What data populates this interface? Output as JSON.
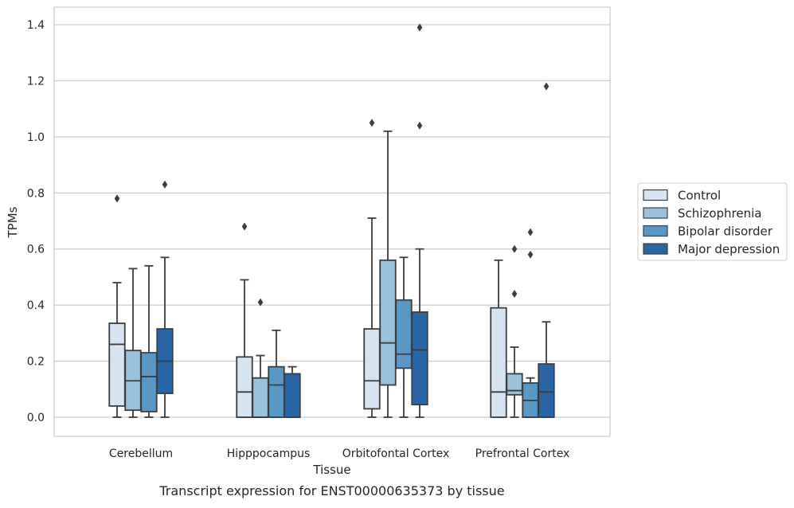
{
  "caption": "Transcript expression for ENST00000635373 by tissue",
  "chart_data": {
    "type": "box",
    "xlabel": "Tissue",
    "ylabel": "TPMs",
    "ylim": [
      -0.066,
      1.46
    ],
    "yticks": [
      "0.0",
      "0.2",
      "0.4",
      "0.6",
      "0.8",
      "1.0",
      "1.2",
      "1.4"
    ],
    "grid": "horizontal",
    "legend_position": "outside-right",
    "categories": [
      "Cerebellum",
      "Hipppocampus",
      "Orbitofontal Cortex",
      "Prefrontal Cortex"
    ],
    "series": [
      {
        "name": "Control",
        "color": "#d6e3f1",
        "boxes": [
          {
            "whislo": 0.0,
            "q1": 0.04,
            "med": 0.26,
            "q3": 0.335,
            "whishi": 0.48,
            "fliers": [
              0.78
            ]
          },
          {
            "whislo": 0.0,
            "q1": 0.0,
            "med": 0.09,
            "q3": 0.215,
            "whishi": 0.49,
            "fliers": [
              0.68
            ]
          },
          {
            "whislo": 0.0,
            "q1": 0.03,
            "med": 0.13,
            "q3": 0.315,
            "whishi": 0.71,
            "fliers": [
              1.05
            ]
          },
          {
            "whislo": 0.0,
            "q1": 0.0,
            "med": 0.09,
            "q3": 0.39,
            "whishi": 0.56,
            "fliers": []
          }
        ]
      },
      {
        "name": "Schizophrenia",
        "color": "#99c2dc",
        "boxes": [
          {
            "whislo": 0.0,
            "q1": 0.025,
            "med": 0.13,
            "q3": 0.238,
            "whishi": 0.53,
            "fliers": []
          },
          {
            "whislo": 0.0,
            "q1": 0.0,
            "med": 0.0,
            "q3": 0.14,
            "whishi": 0.22,
            "fliers": [
              0.41
            ]
          },
          {
            "whislo": 0.0,
            "q1": 0.115,
            "med": 0.265,
            "q3": 0.56,
            "whishi": 1.02,
            "fliers": []
          },
          {
            "whislo": 0.0,
            "q1": 0.08,
            "med": 0.095,
            "q3": 0.155,
            "whishi": 0.25,
            "fliers": [
              0.44,
              0.6
            ]
          }
        ]
      },
      {
        "name": "Bipolar disorder",
        "color": "#5898c7",
        "boxes": [
          {
            "whislo": 0.0,
            "q1": 0.02,
            "med": 0.145,
            "q3": 0.23,
            "whishi": 0.54,
            "fliers": []
          },
          {
            "whislo": 0.0,
            "q1": 0.0,
            "med": 0.115,
            "q3": 0.18,
            "whishi": 0.31,
            "fliers": []
          },
          {
            "whislo": 0.0,
            "q1": 0.175,
            "med": 0.225,
            "q3": 0.418,
            "whishi": 0.57,
            "fliers": []
          },
          {
            "whislo": 0.0,
            "q1": 0.0,
            "med": 0.06,
            "q3": 0.122,
            "whishi": 0.14,
            "fliers": [
              0.58,
              0.66
            ]
          }
        ]
      },
      {
        "name": "Major depression",
        "color": "#2a66a6",
        "boxes": [
          {
            "whislo": 0.0,
            "q1": 0.085,
            "med": 0.2,
            "q3": 0.315,
            "whishi": 0.57,
            "fliers": [
              0.83
            ]
          },
          {
            "whislo": 0.0,
            "q1": 0.0,
            "med": 0.0,
            "q3": 0.155,
            "whishi": 0.18,
            "fliers": []
          },
          {
            "whislo": 0.0,
            "q1": 0.045,
            "med": 0.24,
            "q3": 0.375,
            "whishi": 0.6,
            "fliers": [
              1.04,
              1.39
            ]
          },
          {
            "whislo": 0.0,
            "q1": 0.0,
            "med": 0.09,
            "q3": 0.19,
            "whishi": 0.34,
            "fliers": [
              1.18
            ]
          }
        ]
      }
    ]
  }
}
